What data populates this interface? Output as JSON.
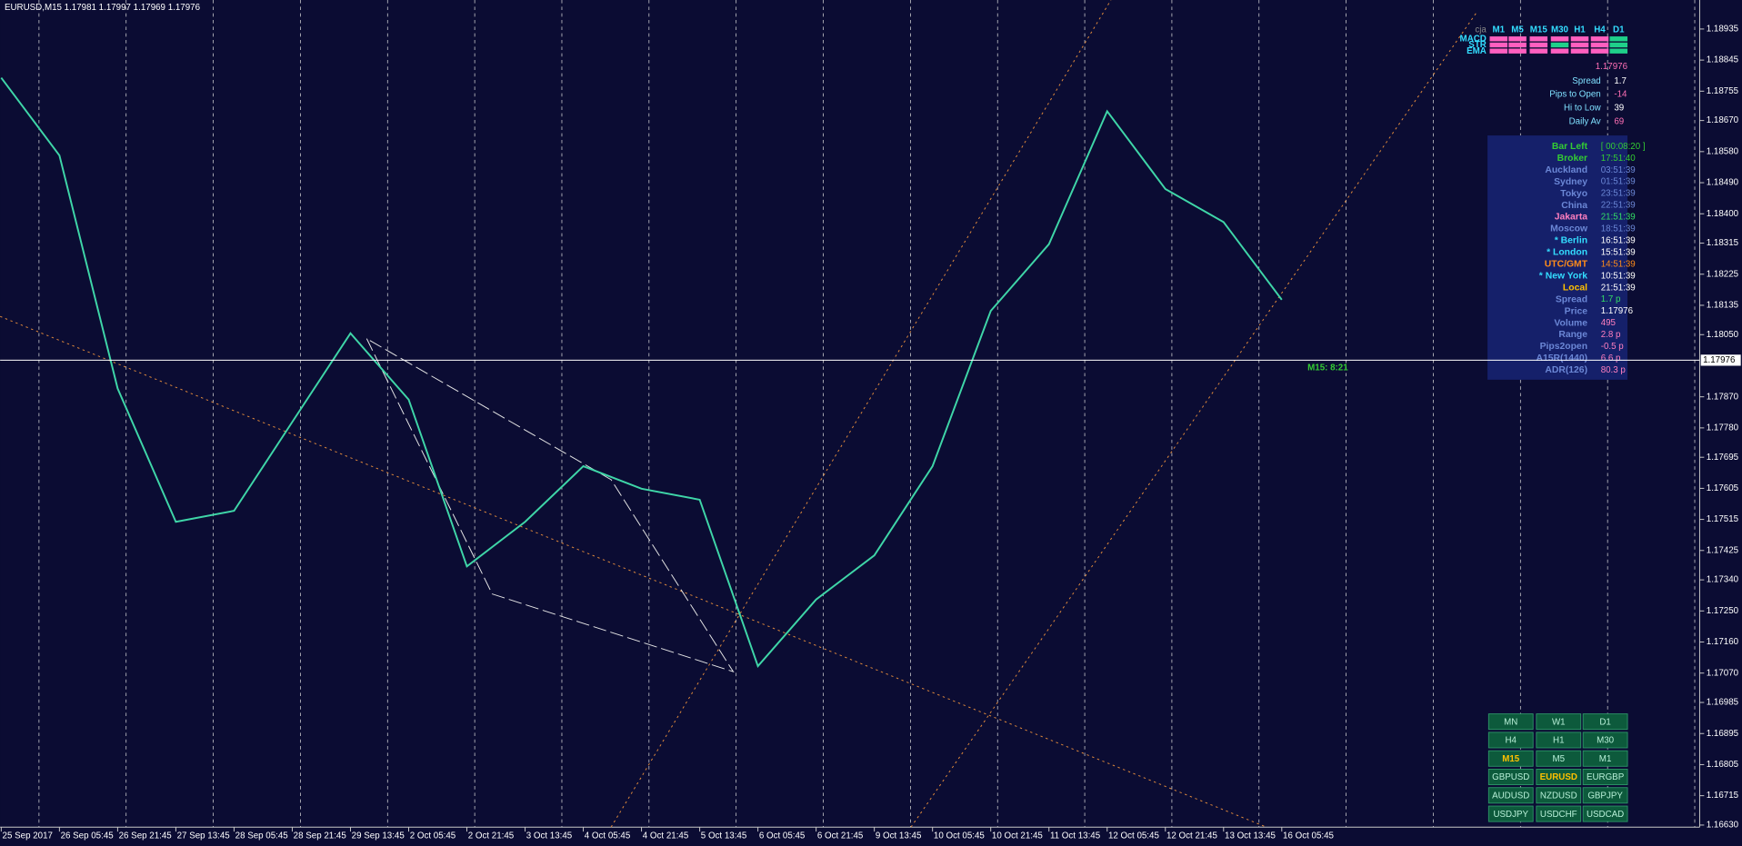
{
  "chart_data": {
    "type": "line",
    "title": "EURUSD,M15  1.17981 1.17997 1.17969 1.17976",
    "categories": [
      "25 Sep 2017",
      "26 Sep 05:45",
      "26 Sep 21:45",
      "27 Sep 13:45",
      "28 Sep 05:45",
      "28 Sep 21:45",
      "29 Sep 13:45",
      "2 Oct 05:45",
      "2 Oct 21:45",
      "3 Oct 13:45",
      "4 Oct 05:45",
      "4 Oct 21:45",
      "5 Oct 13:45",
      "6 Oct 05:45",
      "6 Oct 21:45",
      "9 Oct 13:45",
      "10 Oct 05:45",
      "10 Oct 21:45",
      "11 Oct 13:45",
      "12 Oct 05:45",
      "12 Oct 21:45",
      "13 Oct 13:45",
      "16 Oct 05:45"
    ],
    "values": [
      1.18794,
      1.18569,
      1.17894,
      1.17508,
      1.1754,
      1.17797,
      1.18054,
      1.17862,
      1.17379,
      1.17508,
      1.17669,
      1.17604,
      1.17572,
      1.1709,
      1.17283,
      1.17411,
      1.17669,
      1.18119,
      1.18312,
      1.18697,
      1.18472,
      1.18376,
      1.18151
    ],
    "color": "#3fd6a8",
    "ylim": [
      1.16624,
      1.19019
    ],
    "yticks": [
      1.18935,
      1.18845,
      1.18755,
      {
        "value": 1.1867,
        "label": "1.18670"
      },
      {
        "value": 1.1858,
        "label": "1.18580"
      },
      {
        "value": 1.1849,
        "label": "1.18490"
      },
      {
        "value": 1.184,
        "label": "1.18400"
      },
      1.18315,
      1.18225,
      1.18135,
      {
        "value": 1.1805,
        "label": "1.18050"
      },
      {
        "value": 1.1787,
        "label": "1.17870"
      },
      {
        "value": 1.1778,
        "label": "1.17780"
      },
      1.17695,
      1.17605,
      1.17515,
      1.17425,
      {
        "value": 1.1734,
        "label": "1.17340"
      },
      {
        "value": 1.1725,
        "label": "1.17250"
      },
      {
        "value": 1.1716,
        "label": "1.17160"
      },
      {
        "value": 1.1707,
        "label": "1.17070"
      },
      1.16985,
      1.16895,
      1.16805,
      1.16715,
      {
        "value": 1.1663,
        "label": "1.16630"
      }
    ],
    "current_price": 1.17976,
    "timer_label": "M15: 8:21"
  },
  "indicator_matrix": {
    "label": "cja",
    "timeframes": [
      "M1",
      "M5",
      "M15",
      "M30",
      "H1",
      "H4",
      "D1"
    ],
    "rows": [
      "MACD",
      "STR",
      "EMA"
    ]
  },
  "quote": {
    "price": 1.17976,
    "stats": [
      {
        "label": "Spread",
        "value": 1.7
      },
      {
        "label": "Pips to Open",
        "value": -14
      },
      {
        "label": "Hi to Low",
        "value": 39
      },
      {
        "label": "Daily Av",
        "value": 69
      }
    ]
  },
  "clock": [
    {
      "label": "Bar Left",
      "value": "[ 00:08:20 ]",
      "label_color": "#33cc33",
      "value_color": "#33cc33"
    },
    {
      "label": "Broker",
      "value": "17:51:40",
      "label_color": "#33cc33",
      "value_color": "#33cc33"
    },
    {
      "label": "Auckland",
      "value": "03:51:39",
      "label_color": "#6b87d6",
      "value_color": "#6b87d6"
    },
    {
      "label": "Sydney",
      "value": "01:51:39",
      "label_color": "#6b87d6",
      "value_color": "#6b87d6"
    },
    {
      "label": "Tokyo",
      "value": "23:51:39",
      "label_color": "#6b87d6",
      "value_color": "#6b87d6"
    },
    {
      "label": "China",
      "value": "22:51:39",
      "label_color": "#6b87d6",
      "value_color": "#6b87d6"
    },
    {
      "label": "Jakarta",
      "value": "21:51:39",
      "label_color": "#ff7fbf",
      "value_color": "#33dd66"
    },
    {
      "label": "Moscow",
      "value": "18:51:39",
      "label_color": "#6b87d6",
      "value_color": "#6b87d6"
    },
    {
      "label": "* Berlin",
      "value": "16:51:39",
      "label_color": "#33ddff",
      "value_color": "#ffffff"
    },
    {
      "label": "* London",
      "value": "15:51:39",
      "label_color": "#33ddff",
      "value_color": "#ffffff"
    },
    {
      "label": "UTC/GMT",
      "value": "14:51:39",
      "label_color": "#ff8c1a",
      "value_color": "#ff8c1a"
    },
    {
      "label": "* New York",
      "value": "10:51:39",
      "label_color": "#33ddff",
      "value_color": "#ffffff"
    },
    {
      "label": "Local",
      "value": "21:51:39",
      "label_color": "#ffc000",
      "value_color": "#ffffff"
    },
    {
      "label": "Spread",
      "value": "1.7 p",
      "label_color": "#6b87d6",
      "value_color": "#33dd66"
    },
    {
      "label": "Price",
      "value": 1.17976,
      "label_color": "#6b87d6",
      "value_color": "#ffffff"
    },
    {
      "label": "Volume",
      "value": 495,
      "label_color": "#6b87d6",
      "value_color": "#ff7fbf"
    },
    {
      "label": "Range",
      "value": "2.8 p",
      "label_color": "#6b87d6",
      "value_color": "#ff7fbf"
    },
    {
      "label": "Pips2open",
      "value": "-0.5 p",
      "label_color": "#6b87d6",
      "value_color": "#ff7fbf"
    },
    {
      "label": "A15R(1440)",
      "value": "6.6 p",
      "label_color": "#6b87d6",
      "value_color": "#ff7fbf"
    },
    {
      "label": "ADR(126)",
      "value": "80.3 p",
      "label_color": "#6b87d6",
      "value_color": "#ff7fbf"
    }
  ],
  "buttons": [
    [
      "MN",
      "W1",
      "D1"
    ],
    [
      "H4",
      "H1",
      "M30"
    ],
    [
      "M15",
      "M5",
      "M1"
    ],
    [
      "GBPUSD",
      "EURUSD",
      "EURGBP"
    ],
    [
      "AUDUSD",
      "NZDUSD",
      "GBPJPY"
    ],
    [
      "USDJPY",
      "USDCHF",
      "USDCAD"
    ]
  ]
}
